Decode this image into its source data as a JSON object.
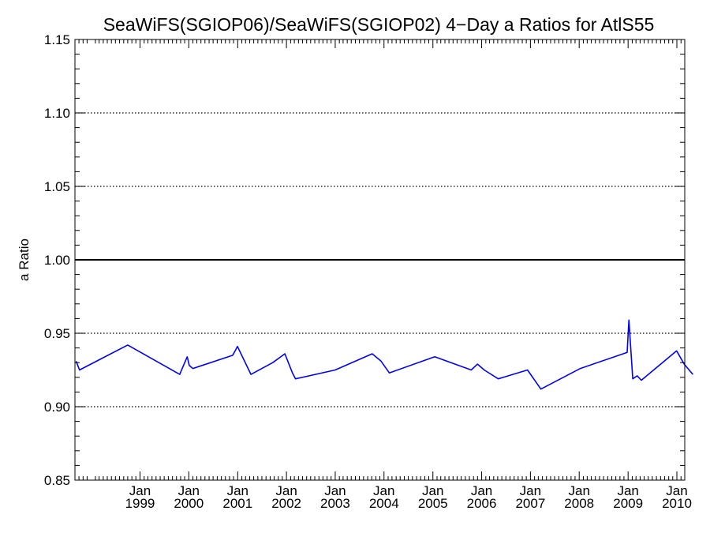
{
  "chart_data": {
    "type": "line",
    "title": "SeaWiFS(SGIOP06)/SeaWiFS(SGIOP02) 4−Day a Ratios for AtlS55",
    "xlabel": "",
    "ylabel": "a Ratio",
    "ylim": [
      0.85,
      1.15
    ],
    "xlim": [
      "1997-09-01",
      "2010-03-01"
    ],
    "y_ticks": [
      "0.85",
      "0.90",
      "0.95",
      "1.00",
      "1.05",
      "1.10",
      "1.15"
    ],
    "y_tick_values": [
      0.85,
      0.9,
      0.95,
      1.0,
      1.05,
      1.1,
      1.15
    ],
    "y_gridlines": [
      0.9,
      0.95,
      1.05,
      1.1
    ],
    "reference_line": 1.0,
    "x_ticks": [
      {
        "month": "Jan",
        "year": "1999",
        "date": "1999-01-01"
      },
      {
        "month": "Jan",
        "year": "2000",
        "date": "2000-01-01"
      },
      {
        "month": "Jan",
        "year": "2001",
        "date": "2001-01-01"
      },
      {
        "month": "Jan",
        "year": "2002",
        "date": "2002-01-01"
      },
      {
        "month": "Jan",
        "year": "2003",
        "date": "2003-01-01"
      },
      {
        "month": "Jan",
        "year": "2004",
        "date": "2004-01-01"
      },
      {
        "month": "Jan",
        "year": "2005",
        "date": "2005-01-01"
      },
      {
        "month": "Jan",
        "year": "2006",
        "date": "2006-01-01"
      },
      {
        "month": "Jan",
        "year": "2007",
        "date": "2007-01-01"
      },
      {
        "month": "Jan",
        "year": "2008",
        "date": "2008-01-01"
      },
      {
        "month": "Jan",
        "year": "2009",
        "date": "2009-01-01"
      },
      {
        "month": "Jan",
        "year": "2010",
        "date": "2010-01-01"
      }
    ],
    "grid": true,
    "series": [
      {
        "color": "#0000ff",
        "x": [
          "1997-09-10",
          "1997-10-05",
          "1998-10-01",
          "1999-10-25",
          "1999-12-20",
          "2000-01-05",
          "2000-02-01",
          "2000-11-25",
          "2000-12-30",
          "2001-04-10",
          "2001-09-20",
          "2001-12-20",
          "2002-02-15",
          "2002-03-10",
          "2003-01-01",
          "2003-10-05",
          "2003-12-10",
          "2004-02-10",
          "2005-01-15",
          "2005-10-15",
          "2005-12-01",
          "2006-01-20",
          "2006-05-05",
          "2006-12-10",
          "2007-03-20",
          "2008-01-10",
          "2008-12-25",
          "2009-01-07",
          "2009-02-05",
          "2009-03-10",
          "2009-04-10",
          "2009-12-30",
          "2010-02-25",
          "2010-05-01"
        ],
        "y": [
          0.931,
          0.925,
          0.942,
          0.922,
          0.934,
          0.928,
          0.926,
          0.935,
          0.941,
          0.922,
          0.93,
          0.936,
          0.923,
          0.919,
          0.925,
          0.936,
          0.931,
          0.923,
          0.934,
          0.925,
          0.929,
          0.925,
          0.919,
          0.925,
          0.912,
          0.926,
          0.937,
          0.959,
          0.919,
          0.921,
          0.918,
          0.938,
          0.929,
          0.922
        ]
      }
    ]
  }
}
